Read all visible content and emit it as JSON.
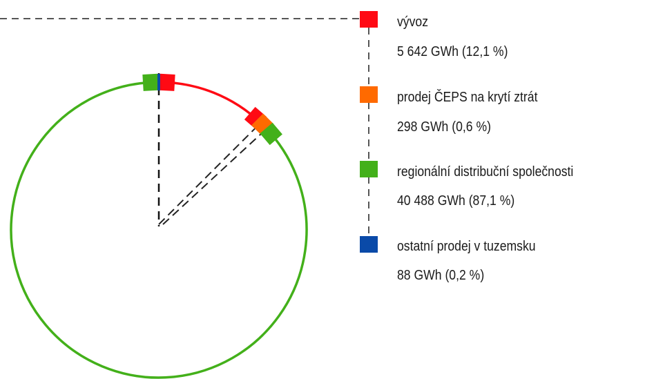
{
  "chart_data": {
    "type": "pie",
    "title": "",
    "slices": [
      {
        "label": "vývoz",
        "value_text": "5 642 GWh (12,1 %)",
        "gwh": 5642,
        "percent": 12.1,
        "color": "#ff0a14"
      },
      {
        "label": "prodej ČEPS na krytí ztrát",
        "value_text": "298 GWh (0,6 %)",
        "gwh": 298,
        "percent": 0.6,
        "color": "#ff6a00"
      },
      {
        "label": "regionální distribuční společnosti",
        "value_text": "40 488 GWh (87,1 %)",
        "gwh": 40488,
        "percent": 87.1,
        "color": "#43b01a"
      },
      {
        "label": "ostatní prodej v tuzemsku",
        "value_text": "88 GWh (0,2 %)",
        "gwh": 88,
        "percent": 0.2,
        "color": "#0a4aa8"
      }
    ],
    "legend_position": "right"
  }
}
